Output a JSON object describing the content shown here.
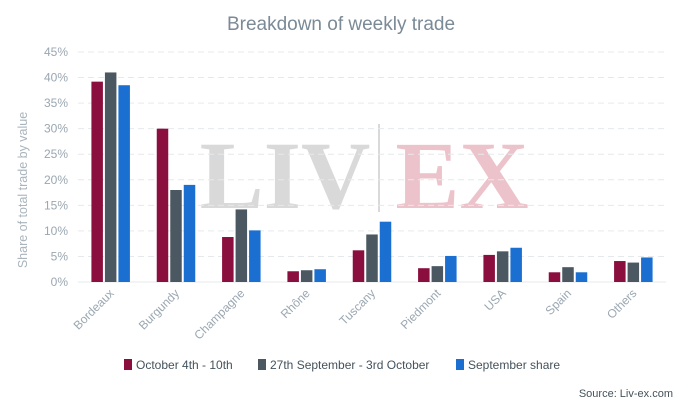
{
  "chart_data": {
    "type": "bar",
    "title": "Breakdown of weekly trade",
    "xlabel": "",
    "ylabel": "Share of total trade by value",
    "ylim": [
      0,
      45
    ],
    "yticks": [
      0,
      5,
      10,
      15,
      20,
      25,
      30,
      35,
      40,
      45
    ],
    "ytick_suffix": "%",
    "grid": true,
    "legend_position": "bottom",
    "categories": [
      "Bordeaux",
      "Burgundy",
      "Champagne",
      "Rhône",
      "Tuscany",
      "Piedmont",
      "USA",
      "Spain",
      "Others"
    ],
    "series": [
      {
        "name": "October 4th - 10th",
        "color": "#8a0e3e",
        "values": [
          39.2,
          30.0,
          8.8,
          2.1,
          6.2,
          2.7,
          5.3,
          1.9,
          4.1
        ]
      },
      {
        "name": "27th September - 3rd October",
        "color": "#4b5862",
        "values": [
          41.0,
          18.0,
          14.2,
          2.3,
          9.3,
          3.1,
          6.0,
          2.9,
          3.8
        ]
      },
      {
        "name": "September share",
        "color": "#1a6fd0",
        "values": [
          38.5,
          19.0,
          10.1,
          2.5,
          11.8,
          5.1,
          6.7,
          1.9,
          4.8
        ]
      }
    ],
    "source": "Source: Liv-ex.com"
  },
  "watermark": {
    "left": "LIV",
    "right": "EX",
    "left_color": "#d9d9d9",
    "right_color": "#ecc3cb"
  }
}
